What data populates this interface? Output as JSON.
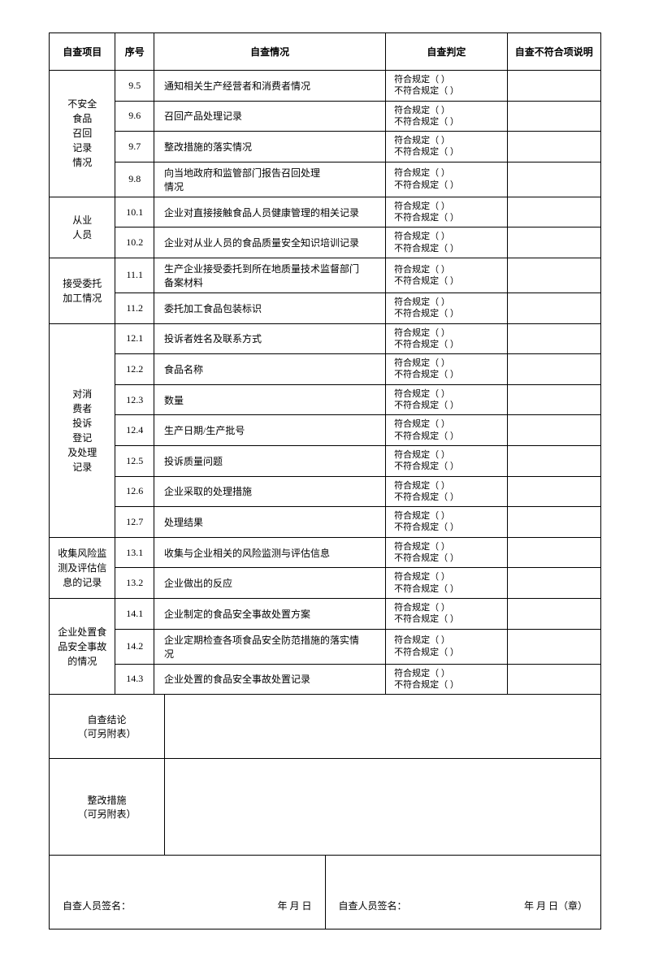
{
  "headers": {
    "project": "自查项目",
    "seq": "序号",
    "situation": "自查情况",
    "judge": "自查判定",
    "note": "自查不符合项说明"
  },
  "judge_conform": "符合规定（   ）",
  "judge_nonconform": "不符合规定（   ）",
  "groups": [
    {
      "project": "不安全<br>食品<br>召回<br>记录<br>情况",
      "rows": [
        {
          "seq": "9.5",
          "situation": "通知相关生产经营者和消费者情况"
        },
        {
          "seq": "9.6",
          "situation": "召回产品处理记录"
        },
        {
          "seq": "9.7",
          "situation": "整改措施的落实情况"
        },
        {
          "seq": "9.8",
          "situation": "向当地政府和监管部门报告召回处理<br>情况"
        }
      ]
    },
    {
      "project": "从业<br>人员",
      "rows": [
        {
          "seq": "10.1",
          "situation": "企业对直接接触食品人员健康管理的相关记录"
        },
        {
          "seq": "10.2",
          "situation": "企业对从业人员的食品质量安全知识培训记录"
        }
      ]
    },
    {
      "project": "接受委托<br>加工情况",
      "rows": [
        {
          "seq": "11.1",
          "situation": "生产企业接受委托到所在地质量技术监督部门<br>备案材料"
        },
        {
          "seq": "11.2",
          "situation": "委托加工食品包装标识"
        }
      ]
    },
    {
      "project": "对消<br>费者<br>投诉<br>登记<br>及处理<br>记录",
      "rows": [
        {
          "seq": "12.1",
          "situation": "投诉者姓名及联系方式"
        },
        {
          "seq": "12.2",
          "situation": "食品名称"
        },
        {
          "seq": "12.3",
          "situation": "数量"
        },
        {
          "seq": "12.4",
          "situation": "生产日期/生产批号"
        },
        {
          "seq": "12.5",
          "situation": "投诉质量问题"
        },
        {
          "seq": "12.6",
          "situation": "企业采取的处理措施"
        },
        {
          "seq": "12.7",
          "situation": "处理结果"
        }
      ]
    },
    {
      "project": "收集风险监测及评估信息的记录",
      "rows": [
        {
          "seq": "13.1",
          "situation": "收集与企业相关的风险监测与评估信息"
        },
        {
          "seq": "13.2",
          "situation": "企业做出的反应"
        }
      ]
    },
    {
      "project": "企业处置食品安全事故的情况",
      "rows": [
        {
          "seq": "14.1",
          "situation": "企业制定的食品安全事故处置方案"
        },
        {
          "seq": "14.2",
          "situation": "企业定期检查各项食品安全防范措施的落实情<br>况"
        },
        {
          "seq": "14.3",
          "situation": "企业处置的食品安全事故处置记录"
        }
      ]
    }
  ],
  "footer": {
    "conclusion_label": "自查结论<br>（可另附表）",
    "measures_label": "整改措施<br>（可另附表）",
    "sig1": "自查人员签名：",
    "sig2": "自查人员签名：",
    "date1": "年   月   日",
    "date2": "年   月   日（章）"
  }
}
